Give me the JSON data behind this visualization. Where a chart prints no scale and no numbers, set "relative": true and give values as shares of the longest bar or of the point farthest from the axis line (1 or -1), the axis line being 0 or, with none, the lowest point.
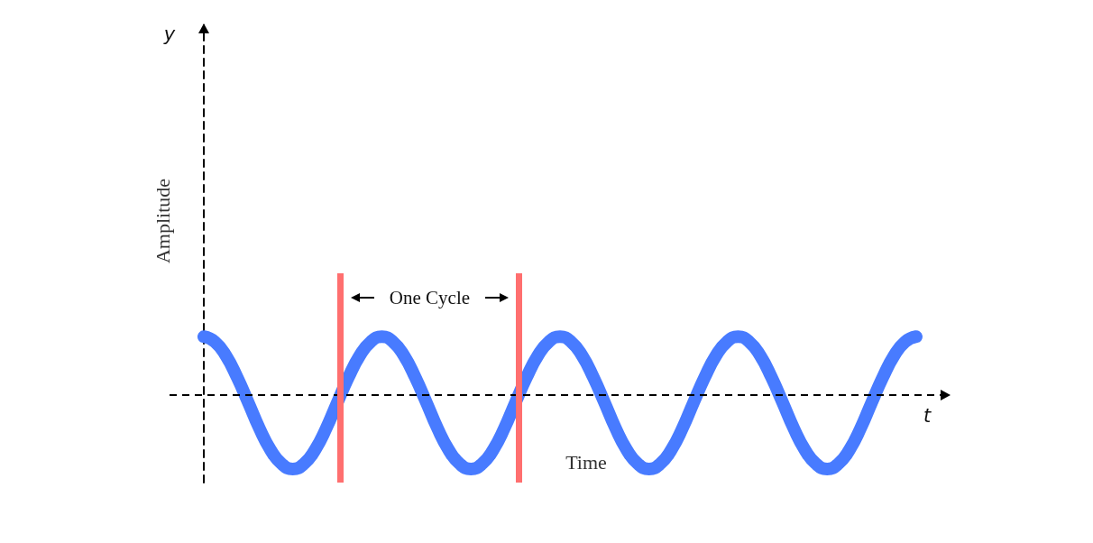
{
  "chart_data": {
    "type": "line",
    "xlabel": "Time",
    "ylabel": "Amplitude",
    "annotations": [
      "t",
      "y",
      "One Cycle"
    ],
    "relative": true,
    "categories": [
      null,
      null,
      null,
      null,
      null,
      null,
      null,
      null,
      null,
      null,
      null,
      null,
      null,
      null,
      null,
      null,
      null,
      null,
      null,
      null,
      null,
      null,
      null,
      null,
      null,
      null,
      null,
      null,
      null,
      null,
      null,
      null,
      null,
      null,
      null,
      null,
      null,
      null,
      null,
      null,
      null,
      null,
      null,
      null,
      null,
      null,
      null,
      null,
      null,
      null,
      null,
      null,
      null,
      null,
      null,
      null,
      null,
      null,
      null,
      null,
      null,
      null,
      null,
      null,
      null
    ],
    "series": [
      {
        "color": "#487bff",
        "values": [
          0.79,
          0.72,
          0.53,
          0.24,
          -0.1,
          -0.45,
          -0.74,
          -0.93,
          -1,
          -0.93,
          -0.74,
          -0.45,
          -0.1,
          0.24,
          0.53,
          0.72,
          0.79,
          0.72,
          0.53,
          0.24,
          -0.1,
          -0.45,
          -0.74,
          -0.93,
          -1,
          -0.93,
          -0.74,
          -0.45,
          -0.1,
          0.24,
          0.53,
          0.72,
          0.79,
          0.72,
          0.53,
          0.24,
          -0.1,
          -0.45,
          -0.74,
          -0.93,
          -1,
          -0.93,
          -0.74,
          -0.45,
          -0.1,
          0.24,
          0.53,
          0.72,
          0.79,
          0.72,
          0.53,
          0.24,
          -0.1,
          -0.45,
          -0.74,
          -0.93,
          -1,
          -0.93,
          -0.74,
          -0.45,
          -0.1,
          0.24,
          0.53,
          0.72,
          0.79
        ]
      }
    ],
    "ref_lines": [
      {
        "axis": "y",
        "value": 0,
        "color": "#000000",
        "line_style": "dashed"
      }
    ]
  }
}
